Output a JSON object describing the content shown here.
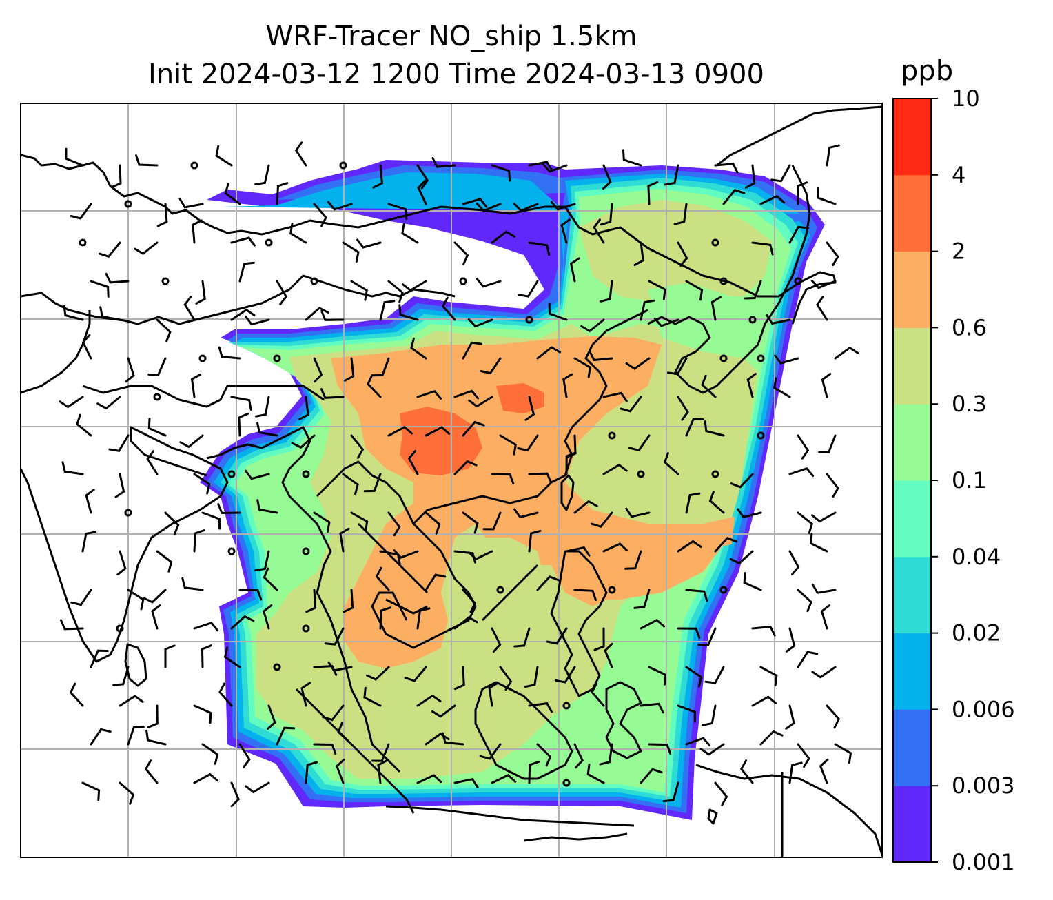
{
  "title": {
    "line1": "WRF-Tracer NO_ship 1.5km",
    "line2": "Init 2024-03-12 1200 Time 2024-03-13 0900"
  },
  "colorbar": {
    "unit": "ppb",
    "ticks": [
      "0.001",
      "0.003",
      "0.006",
      "0.02",
      "0.04",
      "0.1",
      "0.3",
      "0.6",
      "2",
      "4",
      "10"
    ],
    "colors": [
      "#6128fb",
      "#3271f3",
      "#04b1ec",
      "#2edcd5",
      "#63fcc0",
      "#96fb94",
      "#cbe083",
      "#fcae63",
      "#ff6f3a",
      "#ff2a14"
    ]
  },
  "map": {
    "field": "NO_ship tracer",
    "gridlines": true,
    "coastline_color": "#000000",
    "wind_barb_color": "#000000"
  }
}
